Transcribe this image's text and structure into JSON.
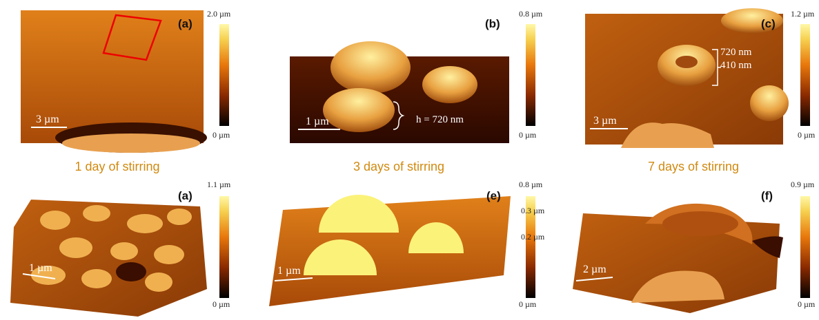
{
  "captions": [
    "1 day of stirring",
    "3 days of stirring",
    "7 days of stirring"
  ],
  "panels": [
    {
      "label": "(a)",
      "scale_bar": "3 µm",
      "colorbar": {
        "max": "2.0 µm",
        "min": "0 µm"
      }
    },
    {
      "label": "(b)",
      "scale_bar": "1 µm",
      "colorbar": {
        "max": "0.8 µm",
        "min": "0 µm"
      },
      "annotations": [
        "h = 720 nm"
      ]
    },
    {
      "label": "(c)",
      "scale_bar": "3 µm",
      "colorbar": {
        "max": "1.2 µm",
        "min": "0 µm"
      },
      "annotations": [
        "720 nm",
        "410 nm"
      ]
    },
    {
      "label": "(a)",
      "scale_bar": "1 µm",
      "colorbar": {
        "max": "1.1 µm",
        "min": "0 µm"
      }
    },
    {
      "label": "(e)",
      "scale_bar": "1 µm",
      "colorbar": {
        "max": "0.8 µm",
        "min": "0 µm",
        "ticks": [
          "0.3 µm",
          "0.2 µm"
        ]
      }
    },
    {
      "label": "(f)",
      "scale_bar": "2 µm",
      "colorbar": {
        "max": "0.9 µm",
        "min": "0 µm"
      }
    }
  ]
}
